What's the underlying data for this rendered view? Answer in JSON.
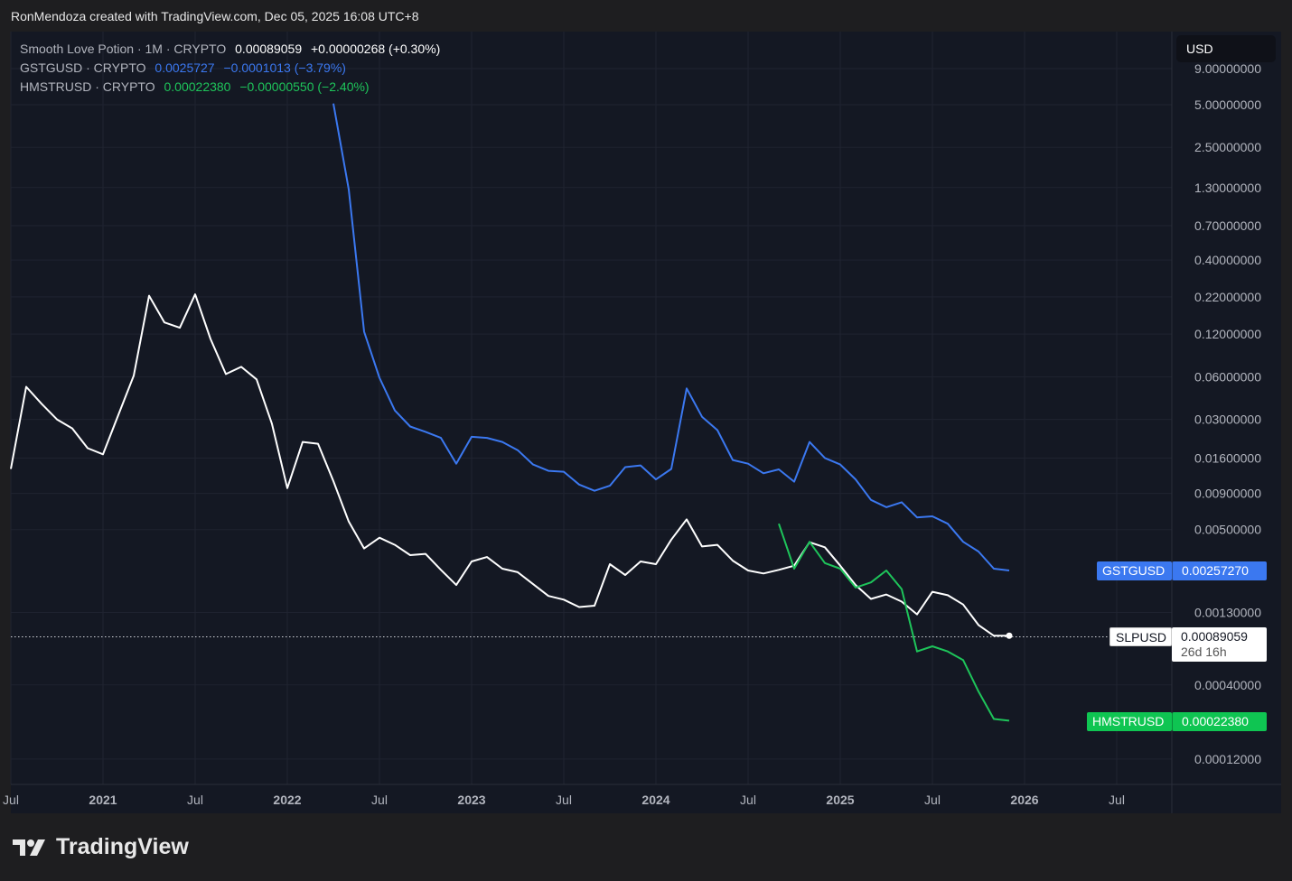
{
  "attribution": "RonMendoza created with TradingView.com, Dec 05, 2025 16:08 UTC+8",
  "currency_button": "USD",
  "legend": [
    {
      "name": "Smooth Love Potion · 1M · CRYPTO",
      "value": "0.00089059",
      "change": "+0.00000268 (+0.30%)",
      "color": "#ffffff"
    },
    {
      "name": "GSTGUSD · CRYPTO",
      "value": "0.0025727",
      "change": "−0.0001013 (−3.79%)",
      "color": "#3b78f0"
    },
    {
      "name": "HMSTRUSD · CRYPTO",
      "value": "0.00022380",
      "change": "−0.00000550 (−2.40%)",
      "color": "#1ec45a"
    }
  ],
  "badges": {
    "gst": {
      "symbol": "GSTGUSD",
      "price": "0.00257270"
    },
    "slp": {
      "symbol": "SLPUSD",
      "price": "0.00089059",
      "countdown": "26d 16h"
    },
    "hmstr": {
      "symbol": "HMSTRUSD",
      "price": "0.00022380"
    }
  },
  "footer_logo": "TradingView",
  "chart_data": {
    "type": "line",
    "scale": "log",
    "interval": "1M",
    "start_month": "2020-07",
    "xticks": [
      "Jul",
      "2021",
      "Jul",
      "2022",
      "Jul",
      "2023",
      "Jul",
      "2024",
      "Jul",
      "2025",
      "Jul",
      "2026",
      "Jul"
    ],
    "yticks": [
      "9.00000000",
      "5.00000000",
      "2.50000000",
      "1.30000000",
      "0.70000000",
      "0.40000000",
      "0.22000000",
      "0.12000000",
      "0.06000000",
      "0.03000000",
      "0.01600000",
      "0.00900000",
      "0.00500000",
      "0.00130000",
      "0.00040000",
      "0.00012000"
    ],
    "ylim": [
      8e-05,
      9
    ],
    "series": [
      {
        "name": "SLPUSD",
        "color": "#ffffff",
        "start": "2020-07",
        "values": [
          0.0134,
          0.051,
          0.0387,
          0.03,
          0.0259,
          0.0188,
          0.017,
          0.0323,
          0.061,
          0.224,
          0.145,
          0.133,
          0.229,
          0.111,
          0.0627,
          0.0705,
          0.0575,
          0.0279,
          0.0098,
          0.0208,
          0.0202,
          0.011,
          0.0057,
          0.00368,
          0.00438,
          0.0039,
          0.0033,
          0.00337,
          0.0026,
          0.00203,
          0.00298,
          0.0032,
          0.00265,
          0.0025,
          0.00206,
          0.0017,
          0.0016,
          0.00142,
          0.00145,
          0.00285,
          0.00239,
          0.00298,
          0.00285,
          0.00425,
          0.0059,
          0.0038,
          0.0039,
          0.00302,
          0.00257,
          0.00245,
          0.0026,
          0.00278,
          0.00407,
          0.00375,
          0.00278,
          0.00203,
          0.00162,
          0.00174,
          0.00155,
          0.00126,
          0.00182,
          0.00172,
          0.00148,
          0.00106,
          0.00089,
          0.00089059
        ]
      },
      {
        "name": "GSTGUSD",
        "color": "#3b78f0",
        "start": "2022-04",
        "values": [
          5.1,
          1.26,
          0.125,
          0.059,
          0.0347,
          0.0267,
          0.0245,
          0.0222,
          0.0146,
          0.0226,
          0.0222,
          0.0208,
          0.0182,
          0.0144,
          0.013,
          0.0128,
          0.0104,
          0.0094,
          0.0102,
          0.0138,
          0.0142,
          0.0113,
          0.0134,
          0.0496,
          0.0313,
          0.0252,
          0.0155,
          0.0146,
          0.0125,
          0.0133,
          0.0109,
          0.0208,
          0.016,
          0.0144,
          0.0113,
          0.0081,
          0.0072,
          0.0078,
          0.0061,
          0.0062,
          0.0055,
          0.0041,
          0.0035,
          0.00265,
          0.0025727
        ]
      },
      {
        "name": "HMSTRUSD",
        "color": "#1ec45a",
        "start": "2024-09",
        "values": [
          0.0055,
          0.00265,
          0.0041,
          0.0029,
          0.00265,
          0.00195,
          0.00212,
          0.00257,
          0.0019,
          0.00069,
          0.00075,
          0.00069,
          0.0006,
          0.00036,
          0.00023,
          0.0002238
        ]
      }
    ]
  }
}
